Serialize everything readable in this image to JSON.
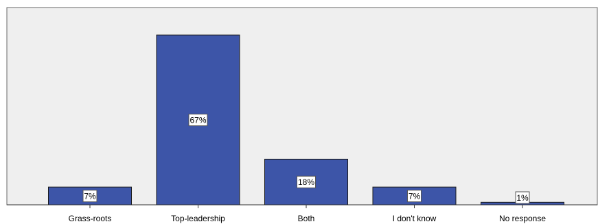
{
  "chart_data": {
    "type": "bar",
    "title": "",
    "xlabel": "",
    "ylabel": "",
    "categories": [
      "Grass-roots",
      "Top-leadership",
      "Both",
      "I don't know",
      "No response"
    ],
    "values": [
      7,
      67,
      18,
      7,
      1
    ],
    "data_labels": [
      "7%",
      "67%",
      "18%",
      "7%",
      "1%"
    ],
    "ylim": [
      0,
      70
    ],
    "grid": false,
    "legend": "none",
    "colors": {
      "bar_fill": "#3d55a8",
      "bar_stroke": "#1a1a1a",
      "plot_background": "#efefef",
      "frame": "#6a6a6a"
    }
  }
}
